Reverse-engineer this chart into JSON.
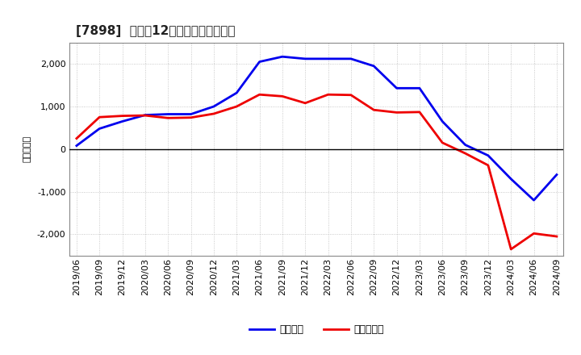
{
  "title": "[7898]  利益の12か月移動合計の推移",
  "ylabel": "（百万円）",
  "background_color": "#ffffff",
  "plot_background": "#ffffff",
  "grid_color": "#bbbbbb",
  "x_labels": [
    "2019/06",
    "2019/09",
    "2019/12",
    "2020/03",
    "2020/06",
    "2020/09",
    "2020/12",
    "2021/03",
    "2021/06",
    "2021/09",
    "2021/12",
    "2022/03",
    "2022/06",
    "2022/09",
    "2022/12",
    "2023/03",
    "2023/06",
    "2023/09",
    "2023/12",
    "2024/03",
    "2024/06",
    "2024/09"
  ],
  "keijo_rieki": [
    80,
    480,
    650,
    800,
    820,
    820,
    1000,
    1320,
    2050,
    2170,
    2120,
    2120,
    2120,
    1950,
    1430,
    1430,
    650,
    100,
    -150,
    -700,
    -1200,
    -600
  ],
  "junrieki": [
    250,
    750,
    780,
    790,
    730,
    740,
    830,
    1000,
    1280,
    1240,
    1080,
    1280,
    1270,
    920,
    860,
    870,
    150,
    -100,
    -380,
    -2350,
    -1980,
    -2050
  ],
  "ylim": [
    -2500,
    2500
  ],
  "yticks": [
    -2000,
    -1000,
    0,
    1000,
    2000
  ],
  "line_color_keijo": "#0000ee",
  "line_color_jun": "#ee0000",
  "legend_keijo": "経常利益",
  "legend_jun": "当期純利益",
  "title_fontsize": 11,
  "tick_fontsize": 8,
  "ylabel_fontsize": 8
}
